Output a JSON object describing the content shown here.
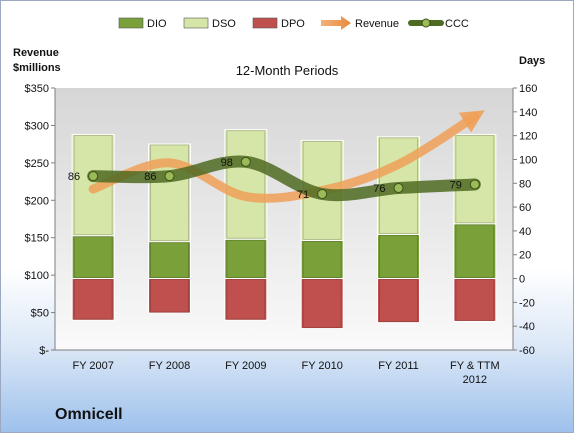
{
  "company": "Omnicell",
  "chart_data": {
    "type": "bar",
    "title": "12-Month Periods",
    "ylabel_left": "Revenue $millions",
    "ylabel_right": "Days",
    "categories": [
      "FY 2007",
      "FY 2008",
      "FY 2009",
      "FY 2010",
      "FY 2011",
      "FY & TTM 2012"
    ],
    "left_axis": {
      "min": 0,
      "max": 350,
      "step": 50,
      "ticks": [
        "$-",
        "$50",
        "$100",
        "$150",
        "$200",
        "$250",
        "$300",
        "$350"
      ]
    },
    "right_axis": {
      "min": -60,
      "max": 160,
      "step": 20
    },
    "series": [
      {
        "name": "DIO",
        "kind": "bar",
        "color": "#7aa03a",
        "values": [
          36,
          31,
          33,
          32,
          37,
          46
        ]
      },
      {
        "name": "DSO",
        "kind": "bar",
        "color": "#d6e6a8",
        "values": [
          85,
          82,
          92,
          84,
          82,
          75
        ]
      },
      {
        "name": "DPO",
        "kind": "bar",
        "color": "#c0504d",
        "values": [
          -35,
          -29,
          -35,
          -42,
          -37,
          -36
        ]
      },
      {
        "name": "Revenue",
        "kind": "line",
        "color": "#f0a058",
        "values": [
          215,
          250,
          205,
          213,
          248,
          312
        ]
      },
      {
        "name": "CCC",
        "kind": "line",
        "color": "#5f7a2a",
        "values": [
          86,
          86,
          98,
          71,
          76,
          79
        ]
      }
    ],
    "grid": false,
    "legend_position": "top"
  }
}
